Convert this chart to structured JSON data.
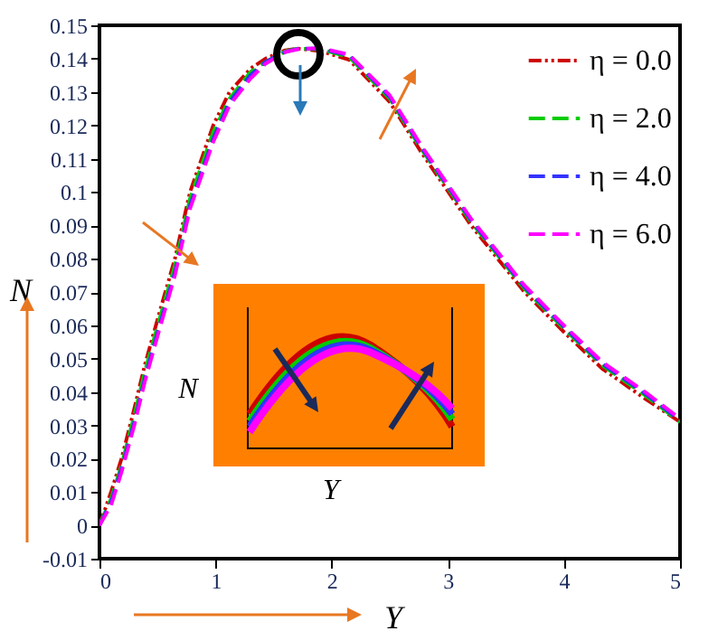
{
  "chart_data": {
    "type": "line",
    "xlabel": "Y",
    "ylabel": "N",
    "x": [
      0,
      0.1,
      0.19,
      0.3,
      0.39,
      0.51,
      0.65,
      0.78,
      0.98,
      1.12,
      1.3,
      1.43,
      1.6,
      1.71,
      1.9,
      2.15,
      2.5,
      2.77,
      3.2,
      3.66,
      4.0,
      4.33,
      4.7,
      5
    ],
    "series": [
      {
        "name": "η = 0.0",
        "color": "#cc0000",
        "line_style": "dotted",
        "values": [
          0,
          0.01,
          0.02,
          0.035,
          0.048,
          0.063,
          0.08,
          0.1,
          0.12,
          0.13,
          0.137,
          0.14,
          0.1425,
          0.143,
          0.1423,
          0.1397,
          0.127,
          0.112,
          0.09,
          0.07,
          0.058,
          0.047,
          0.038,
          0.031
        ]
      },
      {
        "name": "η = 2.0",
        "color": "#00cc00",
        "line_style": "dashed",
        "values": [
          0,
          0.008,
          0.018,
          0.033,
          0.046,
          0.061,
          0.078,
          0.098,
          0.118,
          0.128,
          0.136,
          0.139,
          0.1422,
          0.143,
          0.1428,
          0.1405,
          0.128,
          0.113,
          0.091,
          0.071,
          0.059,
          0.048,
          0.039,
          0.031
        ]
      },
      {
        "name": "η = 4.0",
        "color": "#3333ff",
        "line_style": "dashed",
        "values": [
          0,
          0.007,
          0.017,
          0.031,
          0.044,
          0.059,
          0.076,
          0.096,
          0.116,
          0.127,
          0.135,
          0.139,
          0.142,
          0.143,
          0.143,
          0.141,
          0.1285,
          0.1135,
          0.0915,
          0.0715,
          0.0595,
          0.0485,
          0.0395,
          0.0315
        ]
      },
      {
        "name": "η = 6.0",
        "color": "#ff00ff",
        "line_style": "dashed",
        "values": [
          0,
          0.006,
          0.016,
          0.03,
          0.043,
          0.058,
          0.075,
          0.095,
          0.115,
          0.126,
          0.134,
          0.1385,
          0.142,
          0.1428,
          0.1432,
          0.1412,
          0.129,
          0.114,
          0.092,
          0.072,
          0.06,
          0.049,
          0.04,
          0.032
        ]
      }
    ],
    "xlim": [
      0,
      5
    ],
    "xticks": [
      0,
      1,
      2,
      3,
      4,
      5
    ],
    "ylim": [
      -0.01,
      0.15
    ],
    "yticks": [
      -0.01,
      0,
      0.01,
      0.02,
      0.03,
      0.04,
      0.05,
      0.06,
      0.07,
      0.08,
      0.09,
      0.1,
      0.11,
      0.12,
      0.13,
      0.14,
      0.15
    ],
    "legend": "top right",
    "annotations": [
      "N",
      "Y"
    ]
  }
}
